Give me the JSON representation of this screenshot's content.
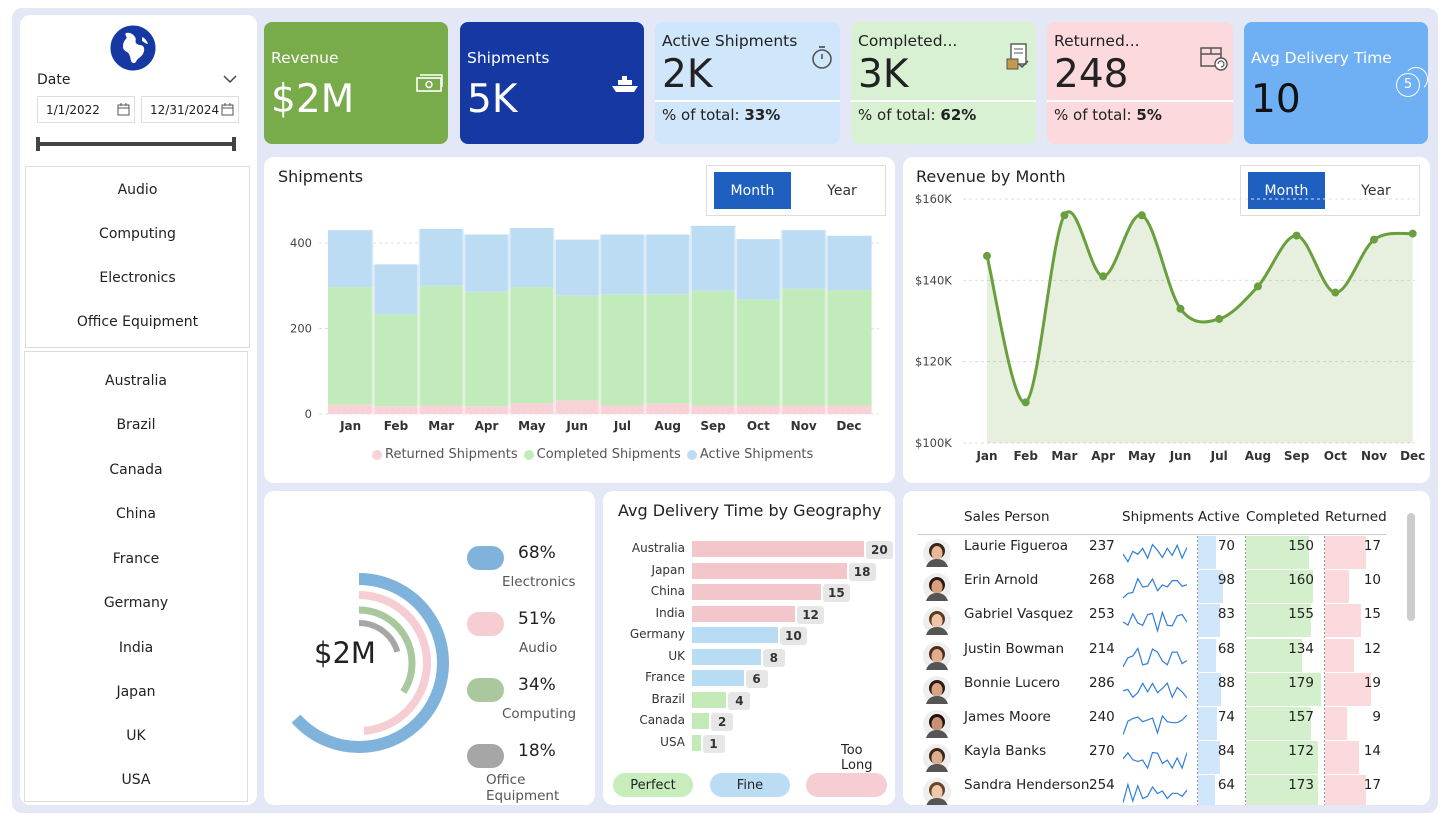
{
  "filters": {
    "date_label": "Date",
    "date_from": "1/1/2022",
    "date_to": "12/31/2024",
    "categories": [
      "Audio",
      "Computing",
      "Electronics",
      "Office Equipment"
    ],
    "countries": [
      "Australia",
      "Brazil",
      "Canada",
      "China",
      "France",
      "Germany",
      "India",
      "Japan",
      "UK",
      "USA"
    ]
  },
  "kpis": {
    "revenue": {
      "title": "Revenue",
      "value": "$2M"
    },
    "shipments": {
      "title": "Shipments",
      "value": "5K"
    },
    "active": {
      "title": "Active Shipments",
      "value": "2K",
      "pct_label": "% of total:",
      "pct": "33%"
    },
    "completed": {
      "title": "Completed...",
      "value": "3K",
      "pct_label": "% of total:",
      "pct": "62%"
    },
    "returned": {
      "title": "Returned...",
      "value": "248",
      "pct_label": "% of total:",
      "pct": "5%"
    },
    "avg_delivery": {
      "title": "Avg Delivery Time",
      "value": "10",
      "badge": "5"
    }
  },
  "toggle": {
    "month": "Month",
    "year": "Year"
  },
  "colors": {
    "green": "#78ab4a",
    "navy": "#1538a3",
    "lightblue": "#cfe6fb",
    "lightgreen": "#d8f1d3",
    "pink": "#fbd9dd",
    "blue": "#6fb0f5",
    "accent": "#1f5fbf"
  },
  "shipments_chart": {
    "title": "Shipments",
    "legend": [
      "Returned Shipments",
      "Completed Shipments",
      "Active Shipments"
    ],
    "chart_data": {
      "type": "area",
      "categories": [
        "Jan",
        "Feb",
        "Mar",
        "Apr",
        "May",
        "Jun",
        "Jul",
        "Aug",
        "Sep",
        "Oct",
        "Nov",
        "Dec"
      ],
      "series": [
        {
          "name": "Returned Shipments",
          "values": [
            22,
            18,
            20,
            18,
            25,
            32,
            20,
            25,
            20,
            20,
            20,
            20
          ]
        },
        {
          "name": "Completed Shipments",
          "values": [
            275,
            215,
            280,
            268,
            272,
            245,
            260,
            255,
            268,
            248,
            273,
            270
          ]
        },
        {
          "name": "Active Shipments",
          "values": [
            133,
            117,
            133,
            134,
            138,
            131,
            140,
            140,
            152,
            141,
            137,
            127
          ]
        }
      ],
      "y_ticks": [
        0,
        200,
        400
      ],
      "ylim": [
        0,
        460
      ]
    }
  },
  "revenue_chart": {
    "title": "Revenue by Month",
    "chart_data": {
      "type": "line",
      "categories": [
        "Jan",
        "Feb",
        "Mar",
        "Apr",
        "May",
        "Jun",
        "Jul",
        "Aug",
        "Sep",
        "Oct",
        "Nov",
        "Dec"
      ],
      "values": [
        146000,
        110000,
        156000,
        141000,
        156000,
        133000,
        130500,
        138500,
        151000,
        137000,
        150000,
        151500
      ],
      "y_ticks": [
        "$100K",
        "$120K",
        "$140K",
        "$160K"
      ],
      "ylim": [
        100000,
        160000
      ]
    }
  },
  "donut": {
    "center": "$2M",
    "items": [
      {
        "pct": "68%",
        "label": "Electronics",
        "color": "#80b3dc",
        "value": 68
      },
      {
        "pct": "51%",
        "label": "Audio",
        "color": "#f6cdd3",
        "value": 51
      },
      {
        "pct": "34%",
        "label": "Computing",
        "color": "#a9c89d",
        "value": 34
      },
      {
        "pct": "18%",
        "label": "Office Equipment",
        "color": "#a6a6a6",
        "value": 18
      }
    ]
  },
  "geo": {
    "title": "Avg Delivery Time by Geography",
    "rows": [
      {
        "country": "Australia",
        "value": 20,
        "color": "#f3c6cc"
      },
      {
        "country": "Japan",
        "value": 18,
        "color": "#f3c6cc"
      },
      {
        "country": "China",
        "value": 15,
        "color": "#f3c6cc"
      },
      {
        "country": "India",
        "value": 12,
        "color": "#f3c6cc"
      },
      {
        "country": "Germany",
        "value": 10,
        "color": "#b9dcf5"
      },
      {
        "country": "UK",
        "value": 8,
        "color": "#b9dcf5"
      },
      {
        "country": "France",
        "value": 6,
        "color": "#b9dcf5"
      },
      {
        "country": "Brazil",
        "value": 4,
        "color": "#c4eab8"
      },
      {
        "country": "Canada",
        "value": 2,
        "color": "#c4eab8"
      },
      {
        "country": "USA",
        "value": 1,
        "color": "#c4eab8"
      }
    ],
    "legend": [
      "Perfect",
      "Fine",
      "Too Long"
    ]
  },
  "table": {
    "headers": [
      "Sales Person",
      "Shipments",
      "Active",
      "Completed",
      "Returned"
    ],
    "rows": [
      {
        "name": "Laurie Figueroa",
        "shipments": "237",
        "active": "70",
        "completed": "150",
        "returned": "17"
      },
      {
        "name": "Erin Arnold",
        "shipments": "268",
        "active": "98",
        "completed": "160",
        "returned": "10"
      },
      {
        "name": "Gabriel Vasquez",
        "shipments": "253",
        "active": "83",
        "completed": "155",
        "returned": "15"
      },
      {
        "name": "Justin Bowman",
        "shipments": "214",
        "active": "68",
        "completed": "134",
        "returned": "12"
      },
      {
        "name": "Bonnie Lucero",
        "shipments": "286",
        "active": "88",
        "completed": "179",
        "returned": "19"
      },
      {
        "name": "James Moore",
        "shipments": "240",
        "active": "74",
        "completed": "157",
        "returned": "9"
      },
      {
        "name": "Kayla Banks",
        "shipments": "270",
        "active": "84",
        "completed": "172",
        "returned": "14"
      },
      {
        "name": "Sandra Henderson",
        "shipments": "254",
        "active": "64",
        "completed": "173",
        "returned": "17"
      }
    ]
  }
}
